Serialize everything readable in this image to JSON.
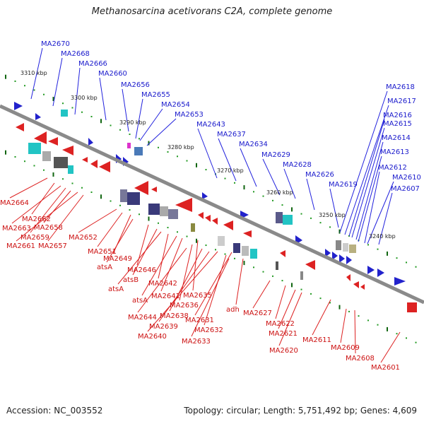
{
  "title": "Methanosarcina acetivorans C2A, complete genome",
  "footer": {
    "accession": "Accession: NC_003552",
    "topology": "Topology: circular; Length: 5,751,492 bp; Genes: 4,609"
  },
  "colors": {
    "backbone": "#888888",
    "forward_strand": "#2222dd",
    "reverse_strand": "#dd2222",
    "tick_dot": "#229922",
    "tick_mark": "#116611"
  },
  "scale_kbp": [
    "3310 kbp",
    "3300 kbp",
    "3290 kbp",
    "3280 kbp",
    "3270 kbp",
    "3260 kbp",
    "3250 kbp",
    "3240 kbp"
  ],
  "forward_labels": [
    "MA2670",
    "MA2668",
    "MA2666",
    "MA2660",
    "MA2656",
    "MA2655",
    "MA2654",
    "MA2653",
    "MA2643",
    "MA2637",
    "MA2634",
    "MA2629",
    "MA2628",
    "MA2626",
    "MA2619",
    "MA2618",
    "MA2617",
    "MA2616",
    "MA2615",
    "MA2614",
    "MA2613",
    "MA2612",
    "MA2610",
    "MA2607"
  ],
  "reverse_labels": [
    "MA2664",
    "MA2662",
    "MA2663",
    "MA2659",
    "MA2658",
    "MA2661",
    "MA2657",
    "MA2652",
    "MA2651",
    "MA2649",
    "atsA",
    "MA2646",
    "atsB",
    "atsA",
    "MA2642",
    "atsA",
    "MA2641",
    "MA2635",
    "MA2636",
    "MA2644",
    "MA2638",
    "MA2639",
    "MA2640",
    "MA2631",
    "adh",
    "MA2632",
    "MA2633",
    "MA2627",
    "MA2622",
    "MA2621",
    "MA2620",
    "MA2611",
    "MA2609",
    "MA2608",
    "MA2601"
  ]
}
